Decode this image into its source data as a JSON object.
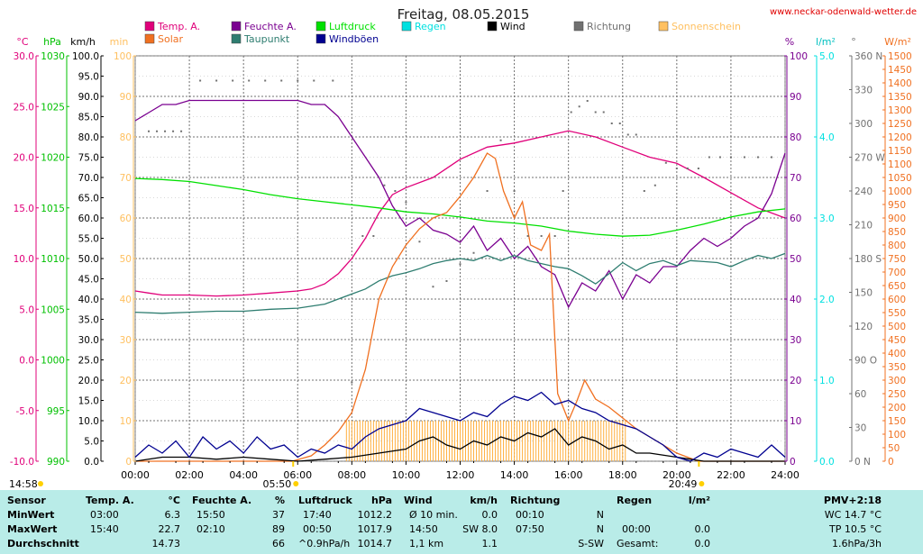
{
  "header": {
    "title": "Freitag, 08.05.2015",
    "site": "www.neckar-odenwald-wetter.de"
  },
  "legend": [
    {
      "label": "Temp. A.",
      "color": "#e0007a"
    },
    {
      "label": "Feuchte A.",
      "color": "#7a0090"
    },
    {
      "label": "Luftdruck",
      "color": "#00e000"
    },
    {
      "label": "Regen",
      "color": "#00e0e0"
    },
    {
      "label": "Wind",
      "color": "#000000"
    },
    {
      "label": "Richtung",
      "color": "#707070"
    },
    {
      "label": "Sonnenschein",
      "color": "#ffc060"
    },
    {
      "label": "Solar",
      "color": "#f07020"
    },
    {
      "label": "Taupunkt",
      "color": "#2e7d70"
    },
    {
      "label": "Windböen",
      "color": "#000090"
    }
  ],
  "axes_units": {
    "temp": "°C",
    "pressure": "hPa",
    "wind": "km/h",
    "sunshine": "min",
    "humidity": "%",
    "rain": "l/m²",
    "direction": "°",
    "solar": "W/m²"
  },
  "sun": {
    "sunrise": "05:50",
    "sunset": "20:49",
    "daylength": "14:58"
  },
  "chart_data": {
    "type": "line",
    "x_ticks": [
      "00:00",
      "02:00",
      "04:00",
      "06:00",
      "08:00",
      "10:00",
      "12:00",
      "14:00",
      "16:00",
      "18:00",
      "20:00",
      "22:00",
      "24:00"
    ],
    "xlim": [
      0,
      24
    ],
    "axes": {
      "temp": {
        "unit": "°C",
        "lim": [
          -10,
          30
        ],
        "ticks": [
          "30.0",
          "25.0",
          "20.0",
          "15.0",
          "10.0",
          "5.0",
          "0.0",
          "-5.0",
          "-10.0"
        ],
        "color": "#e0007a"
      },
      "pressure": {
        "unit": "hPa",
        "lim": [
          990,
          1030
        ],
        "ticks": [
          "1030",
          "1025",
          "1020",
          "1015",
          "1010",
          "1005",
          "1000",
          "995",
          "990"
        ],
        "color": "#00c000"
      },
      "wind": {
        "unit": "km/h",
        "lim": [
          0,
          100
        ],
        "ticks": [
          "100.0",
          "95.0",
          "90.0",
          "85.0",
          "80.0",
          "75.0",
          "70.0",
          "65.0",
          "60.0",
          "55.0",
          "50.0",
          "45.0",
          "40.0",
          "35.0",
          "30.0",
          "25.0",
          "20.0",
          "15.0",
          "10.0",
          "5.0",
          "0.0"
        ],
        "color": "#000000"
      },
      "sunshine": {
        "unit": "min",
        "lim": [
          0,
          100
        ],
        "ticks": [
          "100",
          "90",
          "80",
          "70",
          "60",
          "50",
          "40",
          "30",
          "20",
          "10",
          "0"
        ],
        "color": "#ffc060"
      },
      "humidity": {
        "unit": "%",
        "lim": [
          0,
          100
        ],
        "ticks": [
          "100",
          "90",
          "80",
          "70",
          "60",
          "50",
          "40",
          "30",
          "20",
          "10",
          "0"
        ],
        "color": "#7a0090"
      },
      "rain": {
        "unit": "l/m²",
        "lim": [
          0,
          5
        ],
        "ticks": [
          "5.0",
          "4.0",
          "3.0",
          "2.0",
          "1.0",
          "0.0"
        ],
        "color": "#00e0e0"
      },
      "direction": {
        "unit": "°",
        "lim": [
          0,
          360
        ],
        "ticks": [
          "360 N",
          "330",
          "300",
          "270 W",
          "240",
          "210",
          "180 S",
          "150",
          "120",
          "90 O",
          "60",
          "30",
          "0 N"
        ],
        "color": "#707070"
      },
      "solar": {
        "unit": "W/m²",
        "lim": [
          0,
          1500
        ],
        "ticks": [
          "1500",
          "1450",
          "1400",
          "1350",
          "1300",
          "1250",
          "1200",
          "1150",
          "1100",
          "1050",
          "1000",
          "950",
          "900",
          "850",
          "800",
          "750",
          "700",
          "650",
          "600",
          "550",
          "500",
          "450",
          "400",
          "350",
          "300",
          "250",
          "200",
          "150",
          "100",
          "50",
          "0"
        ],
        "color": "#f07020"
      }
    },
    "series": [
      {
        "name": "Temp. A.",
        "axis": "temp",
        "color": "#e0007a",
        "x": [
          0,
          0.5,
          1,
          2,
          3,
          4,
          5,
          6,
          6.5,
          7,
          7.5,
          8,
          8.5,
          9,
          9.5,
          10,
          11,
          12,
          13,
          14,
          15,
          16,
          17,
          18,
          19,
          20,
          21,
          22,
          23,
          24
        ],
        "y": [
          6.8,
          6.6,
          6.4,
          6.4,
          6.3,
          6.4,
          6.6,
          6.8,
          7.0,
          7.5,
          8.5,
          10.0,
          12.0,
          14.5,
          16.3,
          17.0,
          18.0,
          19.8,
          21.0,
          21.4,
          22.0,
          22.6,
          22.0,
          21.0,
          20.0,
          19.4,
          18.0,
          16.5,
          15.0,
          14.0
        ]
      },
      {
        "name": "Feuchte A.",
        "axis": "humidity",
        "color": "#7a0090",
        "x": [
          0,
          0.5,
          1,
          1.5,
          2,
          3,
          4,
          5,
          6,
          6.5,
          7,
          7.5,
          8,
          8.5,
          9,
          9.5,
          10,
          10.5,
          11,
          11.5,
          12,
          12.5,
          13,
          13.5,
          14,
          14.5,
          15,
          15.5,
          16,
          16.5,
          17,
          17.5,
          18,
          18.5,
          19,
          19.5,
          20,
          20.5,
          21,
          21.5,
          22,
          22.5,
          23,
          23.5,
          24
        ],
        "y": [
          84,
          86,
          88,
          88,
          89,
          89,
          89,
          89,
          89,
          88,
          88,
          85,
          80,
          75,
          70,
          63,
          58,
          60,
          57,
          56,
          54,
          58,
          52,
          55,
          50,
          53,
          48,
          46,
          38,
          44,
          42,
          47,
          40,
          46,
          44,
          48,
          48,
          52,
          55,
          53,
          55,
          58,
          60,
          66,
          76
        ]
      },
      {
        "name": "Luftdruck",
        "axis": "pressure",
        "color": "#00e000",
        "x": [
          0,
          1,
          2,
          3,
          4,
          5,
          6,
          7,
          8,
          9,
          10,
          11,
          12,
          13,
          14,
          15,
          16,
          17,
          18,
          19,
          20,
          21,
          22,
          23,
          24
        ],
        "y": [
          1017.9,
          1017.8,
          1017.6,
          1017.2,
          1016.8,
          1016.3,
          1015.9,
          1015.6,
          1015.3,
          1015.0,
          1014.6,
          1014.4,
          1014.1,
          1013.7,
          1013.5,
          1013.2,
          1012.7,
          1012.4,
          1012.2,
          1012.3,
          1012.8,
          1013.4,
          1014.1,
          1014.6,
          1014.9
        ]
      },
      {
        "name": "Taupunkt",
        "axis": "temp",
        "color": "#2e7d70",
        "x": [
          0,
          1,
          2,
          3,
          4,
          5,
          6,
          6.5,
          7,
          7.5,
          8,
          8.5,
          9,
          9.5,
          10,
          10.5,
          11,
          11.5,
          12,
          12.5,
          13,
          13.5,
          14,
          14.5,
          15,
          15.5,
          16,
          16.5,
          17,
          17.5,
          18,
          18.5,
          19,
          19.5,
          20,
          20.5,
          21,
          21.5,
          22,
          22.5,
          23,
          23.5,
          24
        ],
        "y": [
          4.7,
          4.6,
          4.7,
          4.8,
          4.8,
          5.0,
          5.1,
          5.3,
          5.5,
          6.0,
          6.5,
          7.0,
          7.8,
          8.3,
          8.6,
          9.0,
          9.5,
          9.8,
          10.0,
          9.8,
          10.3,
          9.8,
          10.3,
          9.8,
          9.5,
          9.2,
          9.0,
          8.3,
          7.5,
          8.5,
          9.6,
          8.8,
          9.5,
          9.8,
          9.3,
          9.8,
          9.7,
          9.6,
          9.2,
          9.8,
          10.3,
          10.0,
          10.5
        ]
      },
      {
        "name": "Solar",
        "axis": "solar",
        "color": "#f07020",
        "x": [
          0,
          5.8,
          6.5,
          7,
          7.5,
          8,
          8.5,
          9,
          9.5,
          10,
          10.5,
          11,
          11.5,
          12,
          12.5,
          13,
          13.3,
          13.6,
          14,
          14.3,
          14.6,
          15,
          15.3,
          15.6,
          16,
          16.3,
          16.6,
          17,
          17.5,
          18,
          18.5,
          19,
          19.5,
          20,
          20.8,
          24
        ],
        "y": [
          0,
          0,
          20,
          60,
          110,
          180,
          340,
          600,
          720,
          800,
          860,
          900,
          920,
          980,
          1050,
          1140,
          1120,
          1000,
          900,
          960,
          800,
          780,
          840,
          250,
          150,
          220,
          300,
          230,
          200,
          160,
          120,
          90,
          60,
          30,
          0,
          0
        ]
      },
      {
        "name": "Wind",
        "axis": "wind",
        "color": "#000000",
        "x": [
          0,
          1,
          2,
          3,
          4,
          5,
          6,
          7,
          8,
          9,
          10,
          10.5,
          11,
          11.5,
          12,
          12.5,
          13,
          13.5,
          14,
          14.5,
          15,
          15.5,
          16,
          16.5,
          17,
          17.5,
          18,
          18.5,
          19,
          20,
          21,
          22,
          23,
          24
        ],
        "y": [
          0,
          1,
          1,
          0.5,
          1,
          0.5,
          0,
          0.5,
          1,
          2,
          3,
          5,
          6,
          4,
          3,
          5,
          4,
          6,
          5,
          7,
          6,
          8,
          4,
          6,
          5,
          3,
          4,
          2,
          2,
          1,
          0,
          0,
          0,
          0
        ]
      },
      {
        "name": "Windböen",
        "axis": "wind",
        "color": "#000090",
        "x": [
          0,
          0.5,
          1,
          1.5,
          2,
          2.5,
          3,
          3.5,
          4,
          4.5,
          5,
          5.5,
          6,
          6.5,
          7,
          7.5,
          8,
          8.5,
          9,
          9.5,
          10,
          10.5,
          11,
          11.5,
          12,
          12.5,
          13,
          13.5,
          14,
          14.5,
          15,
          15.5,
          16,
          16.5,
          17,
          17.5,
          18,
          18.5,
          19,
          19.5,
          20,
          20.5,
          21,
          21.5,
          22,
          22.5,
          23,
          23.5,
          24
        ],
        "y": [
          1,
          4,
          2,
          5,
          1,
          6,
          3,
          5,
          2,
          6,
          3,
          4,
          1,
          3,
          2,
          4,
          3,
          6,
          8,
          9,
          10,
          13,
          12,
          11,
          10,
          12,
          11,
          14,
          16,
          15,
          17,
          14,
          15,
          13,
          12,
          10,
          9,
          8,
          6,
          4,
          1,
          0,
          2,
          1,
          3,
          2,
          1,
          4,
          1
        ]
      }
    ],
    "direction_points": {
      "axis": "direction",
      "x": [
        0.5,
        0.8,
        1.1,
        1.4,
        1.7,
        2.4,
        3.0,
        3.6,
        4.2,
        4.8,
        5.4,
        6.0,
        6.6,
        7.3,
        8.0,
        8.4,
        8.8,
        9.2,
        9.6,
        10.0,
        10.5,
        11.0,
        11.5,
        12.0,
        12.5,
        13.0,
        13.5,
        14.0,
        14.5,
        15.0,
        15.5,
        15.8,
        16.1,
        16.4,
        16.7,
        17.0,
        17.3,
        17.6,
        17.9,
        18.2,
        18.5,
        18.8,
        19.2,
        19.6,
        20.0,
        20.4,
        20.8,
        21.2,
        21.6,
        22.0,
        22.5,
        23.0,
        23.5
      ],
      "y": [
        293,
        293,
        293,
        293,
        293,
        338,
        338,
        338,
        338,
        338,
        338,
        338,
        338,
        338,
        70,
        200,
        200,
        245,
        240,
        230,
        195,
        155,
        160,
        175,
        185,
        240,
        285,
        240,
        200,
        200,
        200,
        240,
        310,
        315,
        320,
        310,
        310,
        300,
        300,
        290,
        290,
        240,
        245,
        265,
        260,
        260,
        260,
        270,
        270,
        270,
        270,
        270,
        270
      ]
    },
    "sunshine_bars": {
      "axis": "sunshine",
      "x_start": 7.8,
      "x_end": 18.2,
      "value": 10
    }
  },
  "stats": {
    "headers": {
      "sensor": "Sensor",
      "temp": "Temp. A.",
      "temp_unit": "°C",
      "hum": "Feuchte A.",
      "hum_unit": "%",
      "press": "Luftdruck",
      "press_unit": "hPa",
      "wind": "Wind",
      "wind_unit": "km/h",
      "dir": "Richtung",
      "rain": "Regen",
      "rain_unit": "l/m²",
      "pmv": "PMV+2:18"
    },
    "min": {
      "label": "MinWert",
      "temp_time": "03:00",
      "temp_val": "6.3",
      "hum_time": "15:50",
      "hum_val": "37",
      "press_time": "17:40",
      "press_val": "1012.2",
      "wind_time": "Ø 10 min.",
      "wind_val": "0.0",
      "dir_time": "00:10",
      "dir_val": "N",
      "rain_time": "",
      "rain_val": "",
      "extra": "WC 14.7 °C"
    },
    "max": {
      "label": "MaxWert",
      "temp_time": "15:40",
      "temp_val": "22.7",
      "hum_time": "02:10",
      "hum_val": "89",
      "press_time": "00:50",
      "press_val": "1017.9",
      "wind_time": "14:50",
      "wind_val": "SW 8.0",
      "dir_time": "07:50",
      "dir_val": "N",
      "rain_time": "00:00",
      "rain_val": "0.0",
      "extra": "TP 10.5 °C"
    },
    "avg": {
      "label": "Durchschnitt",
      "temp_val": "14.73",
      "hum_val": "66",
      "press_time": "^0.9hPa/h",
      "press_val": "1014.7",
      "wind_time": "1,1 km",
      "wind_val": "1.1",
      "dir_val": "S-SW",
      "rain_time": "Gesamt:",
      "rain_val": "0.0",
      "extra": "1.6hPa/3h"
    }
  }
}
